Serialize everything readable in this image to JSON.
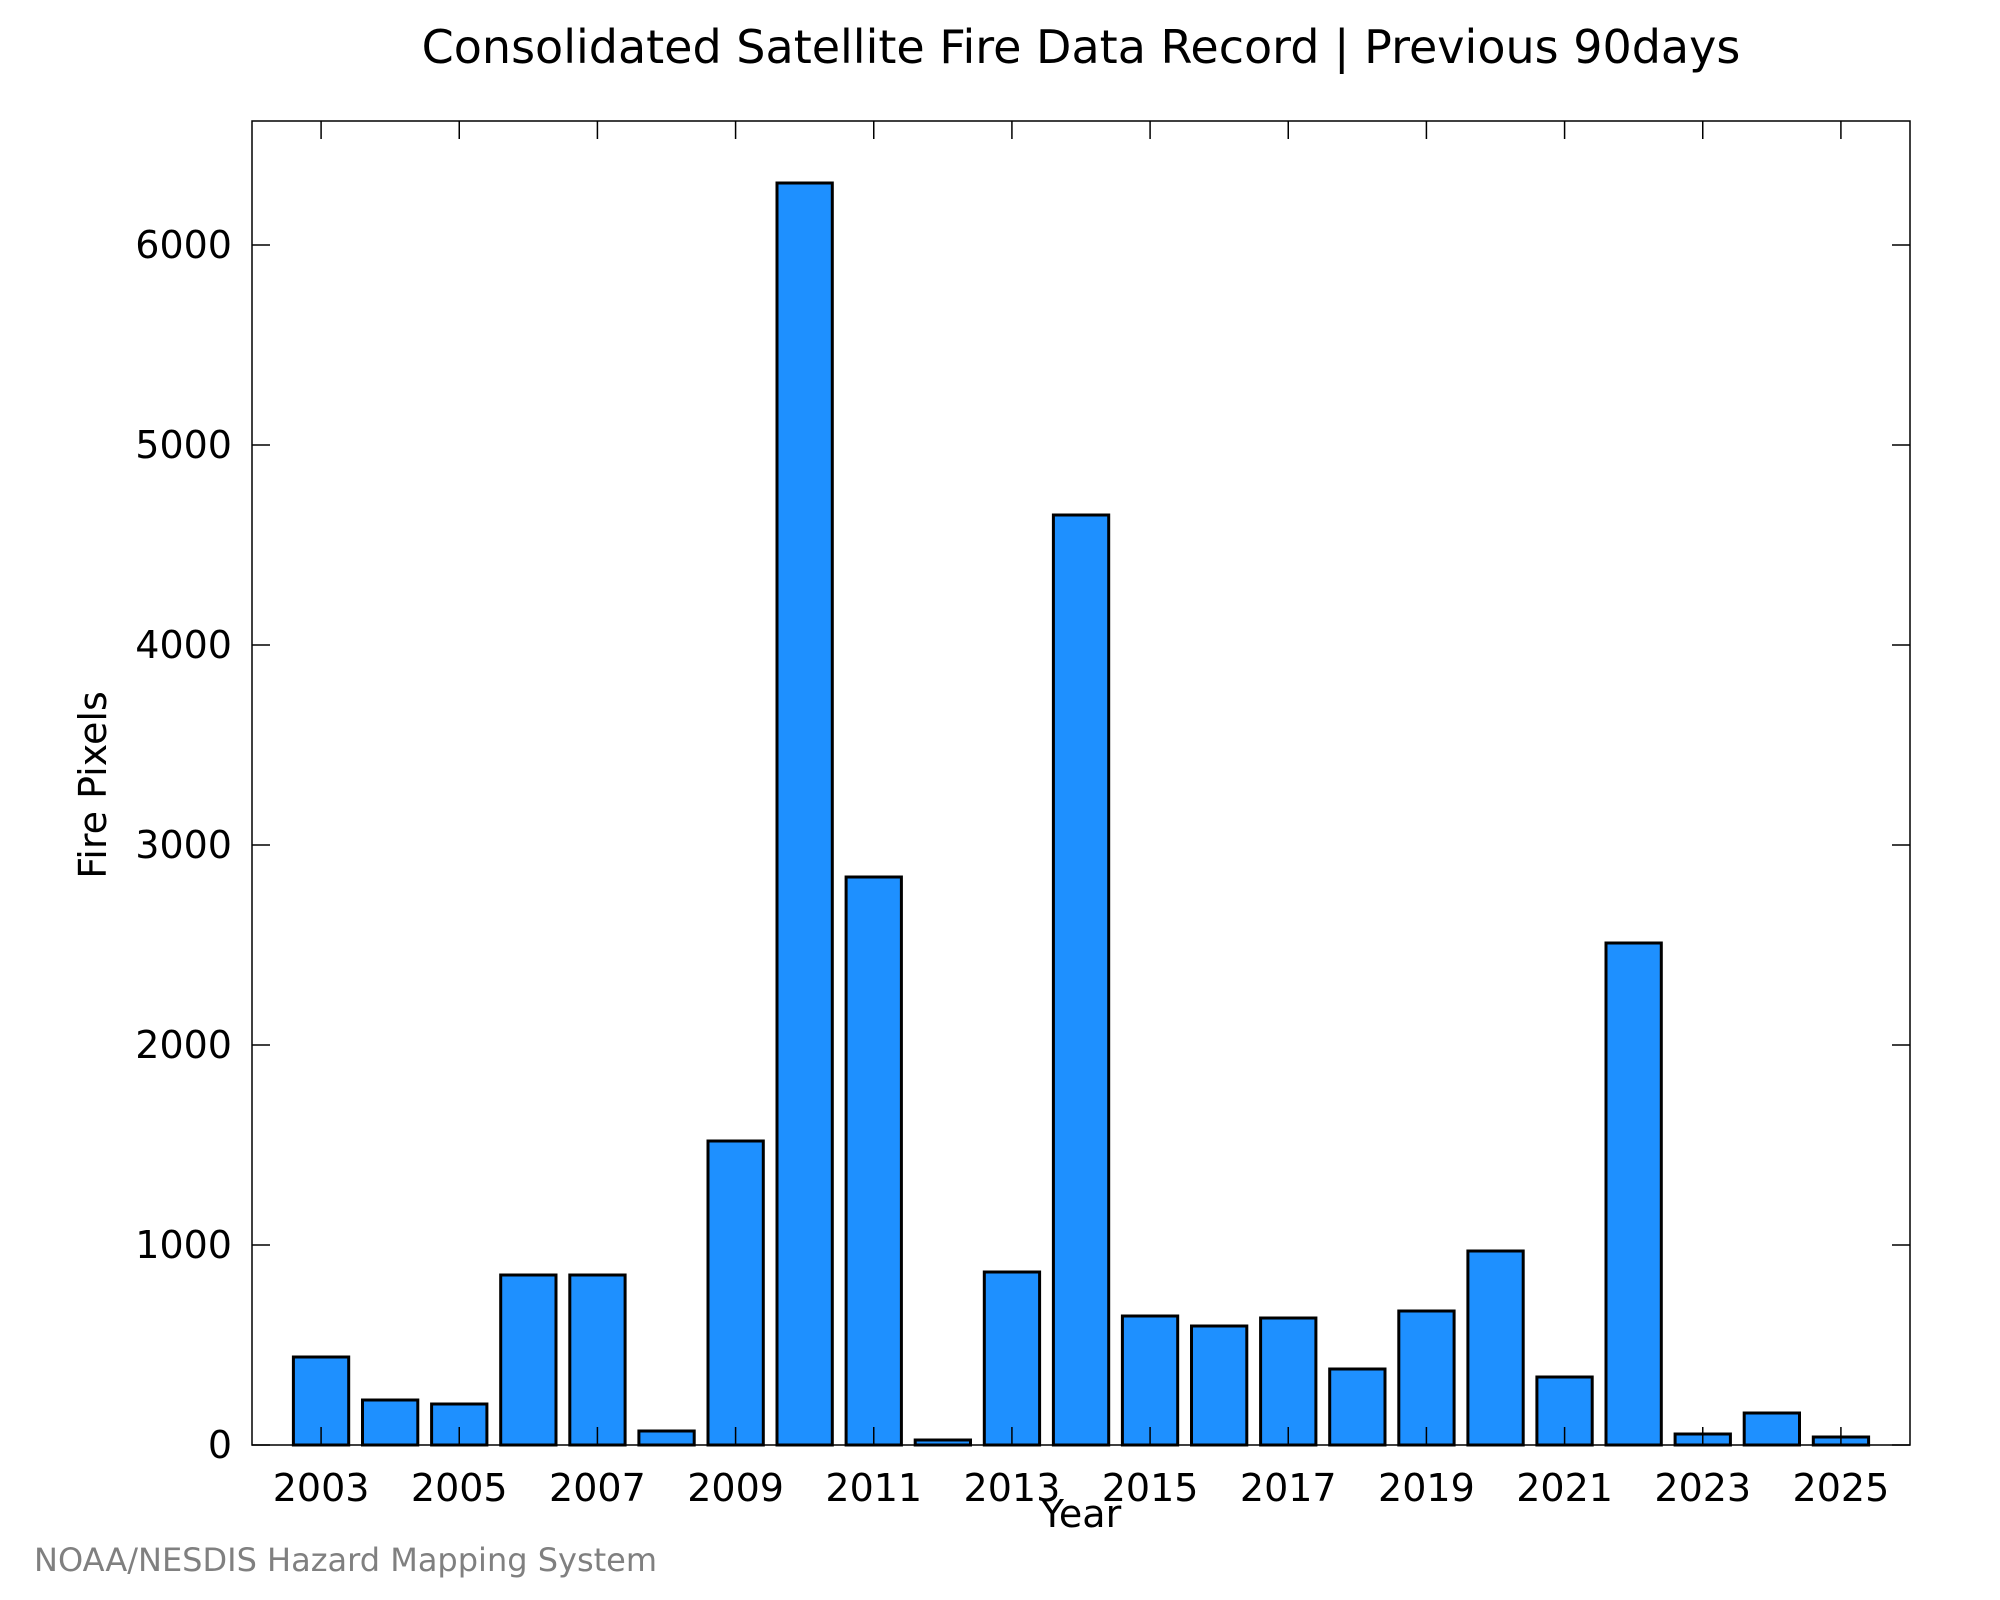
{
  "chart_data": {
    "type": "bar",
    "title": "Consolidated Satellite Fire Data Record | Previous 90days",
    "xlabel": "Year",
    "ylabel": "Fire Pixels",
    "credit": "NOAA/NESDIS Hazard Mapping System",
    "categories": [
      2003,
      2004,
      2005,
      2006,
      2007,
      2008,
      2009,
      2010,
      2011,
      2012,
      2013,
      2014,
      2015,
      2016,
      2017,
      2018,
      2019,
      2020,
      2021,
      2022,
      2023,
      2024,
      2025
    ],
    "values": [
      440,
      225,
      205,
      850,
      850,
      70,
      1520,
      6310,
      2840,
      25,
      865,
      4650,
      645,
      595,
      635,
      380,
      670,
      970,
      340,
      2510,
      55,
      160,
      40
    ],
    "xlim": [
      2002,
      2026
    ],
    "ylim": [
      0,
      6620
    ],
    "x_ticks": [
      "2003",
      "2005",
      "2007",
      "2009",
      "2011",
      "2013",
      "2015",
      "2017",
      "2019",
      "2021",
      "2023",
      "2025"
    ],
    "y_ticks": [
      "0",
      "1000",
      "2000",
      "3000",
      "4000",
      "5000",
      "6000"
    ],
    "bar_color": "#1e90ff",
    "grid": false,
    "legend": "none"
  }
}
